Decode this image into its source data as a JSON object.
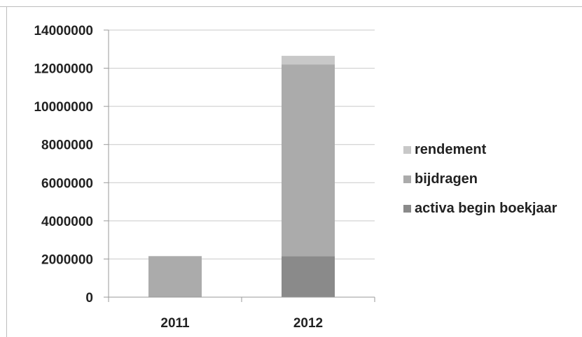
{
  "chart_data": {
    "type": "bar",
    "stacked": true,
    "categories": [
      "2011",
      "2012"
    ],
    "series": [
      {
        "name": "activa begin boekjaar",
        "values": [
          0,
          2150000
        ],
        "color": "#8a8a8a"
      },
      {
        "name": "bijdragen",
        "values": [
          2150000,
          10050000
        ],
        "color": "#ababab"
      },
      {
        "name": "rendement",
        "values": [
          0,
          450000
        ],
        "color": "#c8c8c8"
      }
    ],
    "legend_order": [
      2,
      1,
      0
    ],
    "title": "",
    "xlabel": "",
    "ylabel": "",
    "ylim": [
      0,
      14000000
    ],
    "yticks": [
      0,
      2000000,
      4000000,
      6000000,
      8000000,
      10000000,
      12000000,
      14000000
    ],
    "ytick_labels": [
      "0",
      "2000000",
      "4000000",
      "6000000",
      "8000000",
      "10000000",
      "12000000",
      "14000000"
    ],
    "grid": true,
    "legend_position": "right"
  }
}
